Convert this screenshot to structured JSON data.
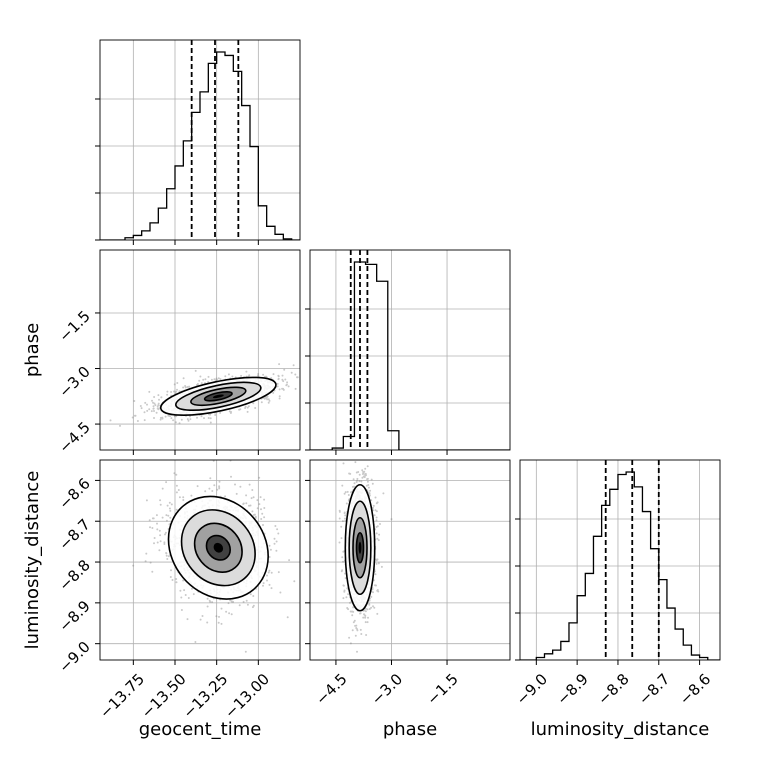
{
  "chart_data": {
    "type": "corner",
    "parameters": [
      "geocent_time",
      "phase",
      "luminosity_distance"
    ],
    "axes": {
      "geocent_time": {
        "label": "geocent_time",
        "range": [
          -13.95,
          -12.75
        ],
        "ticks": [
          -13.75,
          -13.5,
          -13.25,
          -13.0
        ],
        "tick_labels": [
          "−13.75",
          "−13.50",
          "−13.25",
          "−13.00"
        ],
        "quantiles": [
          -13.4,
          -13.26,
          -13.12
        ]
      },
      "phase": {
        "label": "phase",
        "range": [
          -5.2,
          0.2
        ],
        "ticks": [
          -4.5,
          -3.0,
          -1.5
        ],
        "tick_labels": [
          "−4.5",
          "−3.0",
          "−1.5"
        ],
        "quantiles": [
          -4.1,
          -3.85,
          -3.65
        ]
      },
      "luminosity_distance": {
        "label": "luminosity_distance",
        "range": [
          -9.04,
          -8.55
        ],
        "ticks": [
          -9.0,
          -8.9,
          -8.8,
          -8.7,
          -8.6
        ],
        "tick_labels": [
          "−9.0",
          "−8.9",
          "−8.8",
          "−8.7",
          "−8.6"
        ],
        "quantiles": [
          -8.83,
          -8.765,
          -8.7
        ]
      }
    },
    "histograms": {
      "geocent_time": {
        "bin_edges": [
          -13.95,
          -13.9,
          -13.85,
          -13.8,
          -13.75,
          -13.7,
          -13.65,
          -13.6,
          -13.55,
          -13.5,
          -13.45,
          -13.4,
          -13.35,
          -13.3,
          -13.25,
          -13.2,
          -13.15,
          -13.1,
          -13.05,
          -13.0,
          -12.95,
          -12.9,
          -12.85,
          -12.8,
          -12.75
        ],
        "counts": [
          0,
          0,
          0,
          2,
          4,
          8,
          15,
          28,
          45,
          65,
          87,
          112,
          130,
          155,
          165,
          162,
          148,
          118,
          82,
          30,
          12,
          5,
          1,
          0
        ]
      },
      "phase": {
        "bin_edges": [
          -5.2,
          -4.9,
          -4.6,
          -4.3,
          -4.0,
          -3.7,
          -3.4,
          -3.1,
          -2.8,
          -2.5,
          -2.2,
          -1.9,
          -1.6,
          -1.3,
          -1.0,
          -0.7,
          -0.4,
          -0.1,
          0.2
        ],
        "counts": [
          0,
          0,
          4,
          28,
          390,
          385,
          350,
          40,
          0,
          0,
          0,
          0,
          0,
          0,
          0,
          0,
          0,
          0
        ]
      },
      "luminosity_distance": {
        "bin_edges": [
          -9.04,
          -9.0,
          -8.98,
          -8.96,
          -8.94,
          -8.92,
          -8.9,
          -8.88,
          -8.86,
          -8.84,
          -8.82,
          -8.8,
          -8.78,
          -8.76,
          -8.74,
          -8.72,
          -8.7,
          -8.68,
          -8.66,
          -8.64,
          -8.62,
          -8.6,
          -8.58,
          -8.55
        ],
        "counts": [
          0,
          2,
          5,
          8,
          15,
          30,
          52,
          70,
          100,
          125,
          138,
          150,
          152,
          140,
          120,
          90,
          65,
          42,
          25,
          12,
          4,
          2,
          0
        ]
      }
    },
    "joint_peaks": [
      {
        "x": "geocent_time",
        "y": "phase",
        "mean": [
          -13.24,
          -3.75
        ]
      },
      {
        "x": "geocent_time",
        "y": "luminosity_distance",
        "mean": [
          -13.24,
          -8.765
        ]
      },
      {
        "x": "phase",
        "y": "luminosity_distance",
        "mean": [
          -3.85,
          -8.765
        ]
      }
    ],
    "grid": true
  }
}
